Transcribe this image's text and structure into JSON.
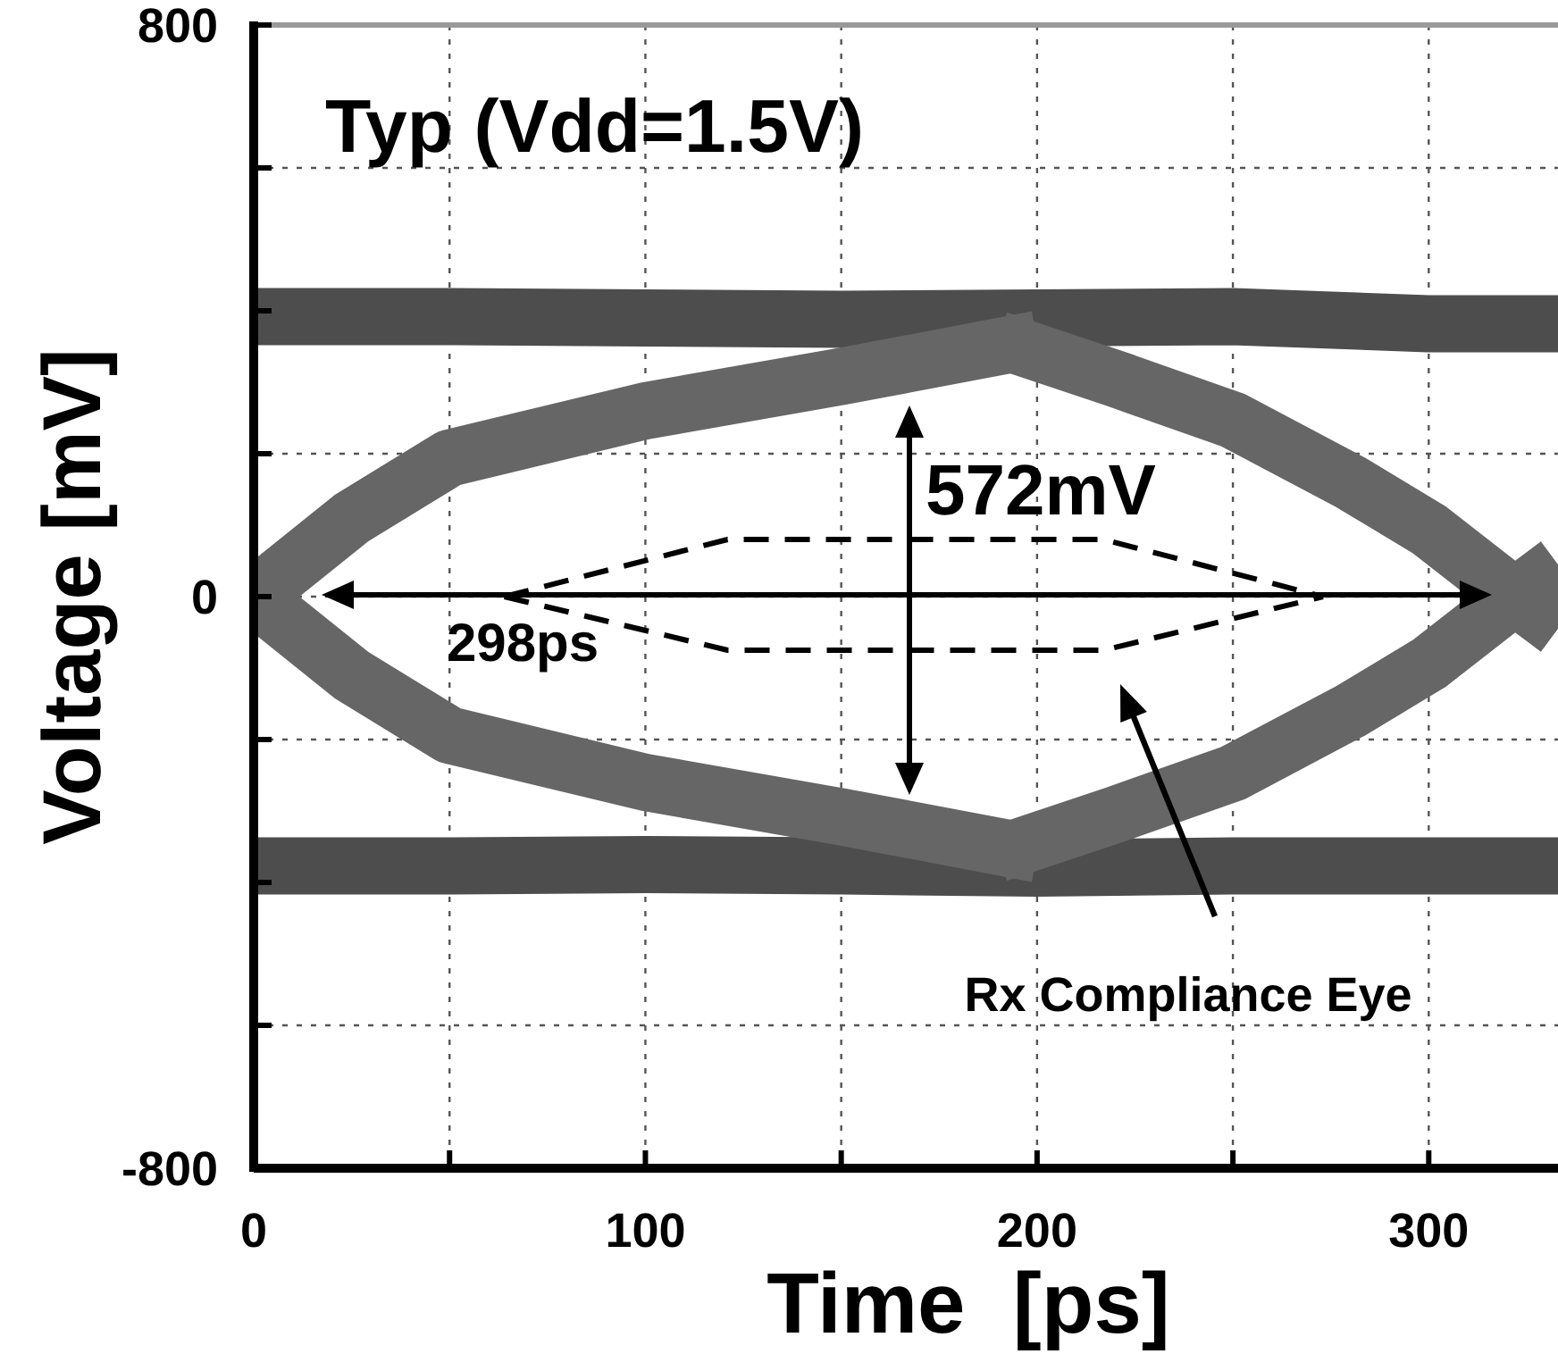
{
  "chart_data": {
    "type": "line",
    "title": "Typ (Vdd=1.5V)",
    "xlabel": "Time  [ps]",
    "ylabel": "Voltage [mV]",
    "xlim": [
      0,
      333
    ],
    "ylim": [
      -800,
      800
    ],
    "xticks": [
      0,
      {
        "value": 50,
        "label": null
      },
      100,
      {
        "value": 150,
        "label": null
      },
      200,
      {
        "value": 250,
        "label": null
      },
      300
    ],
    "yticks": [
      -800,
      {
        "value": -600,
        "label": null
      },
      {
        "value": -400,
        "label": null
      },
      {
        "value": -200,
        "label": null
      },
      0,
      {
        "value": 200,
        "label": null
      },
      {
        "value": 400,
        "label": null
      },
      {
        "value": 600,
        "label": null
      },
      800
    ],
    "grid": true,
    "series": [
      {
        "color": "#4d4d4d",
        "x": [
          0,
          50,
          100,
          150,
          200,
          250,
          300,
          333
        ],
        "values": [
          392,
          392,
          390,
          388,
          390,
          392,
          382,
          382
        ]
      },
      {
        "color": "#4d4d4d",
        "x": [
          0,
          50,
          100,
          150,
          200,
          250,
          300,
          333
        ],
        "values": [
          -377,
          -377,
          -375,
          -377,
          -380,
          -377,
          -377,
          -377
        ]
      },
      {
        "color": "#666666",
        "x": [
          0,
          25,
          50,
          100,
          150,
          200
        ],
        "values": [
          0,
          110,
          194,
          260,
          308,
          360
        ]
      },
      {
        "color": "#666666",
        "x": [
          0,
          25,
          50,
          100,
          150,
          200
        ],
        "values": [
          0,
          -110,
          -194,
          -260,
          -308,
          -360
        ]
      },
      {
        "color": "#666666",
        "x": [
          190,
          220,
          250,
          280,
          300,
          322,
          333
        ],
        "values": [
          360,
          305,
          247,
          160,
          94,
          0,
          -45
        ]
      },
      {
        "color": "#666666",
        "x": [
          190,
          220,
          250,
          280,
          300,
          322,
          333
        ],
        "values": [
          -360,
          -305,
          -247,
          -160,
          -94,
          0,
          45
        ]
      },
      {
        "color": "#000000",
        "line_style": "dashed",
        "x": [
          64,
          121,
          217,
          273
        ],
        "values": [
          0,
          80,
          80,
          0
        ]
      },
      {
        "color": "#000000",
        "line_style": "dashed",
        "x": [
          64,
          121,
          217,
          273
        ],
        "values": [
          0,
          -75,
          -75,
          0
        ]
      }
    ],
    "annotations": [
      "572mV",
      "298ps",
      "Rx Compliance Eye"
    ]
  }
}
